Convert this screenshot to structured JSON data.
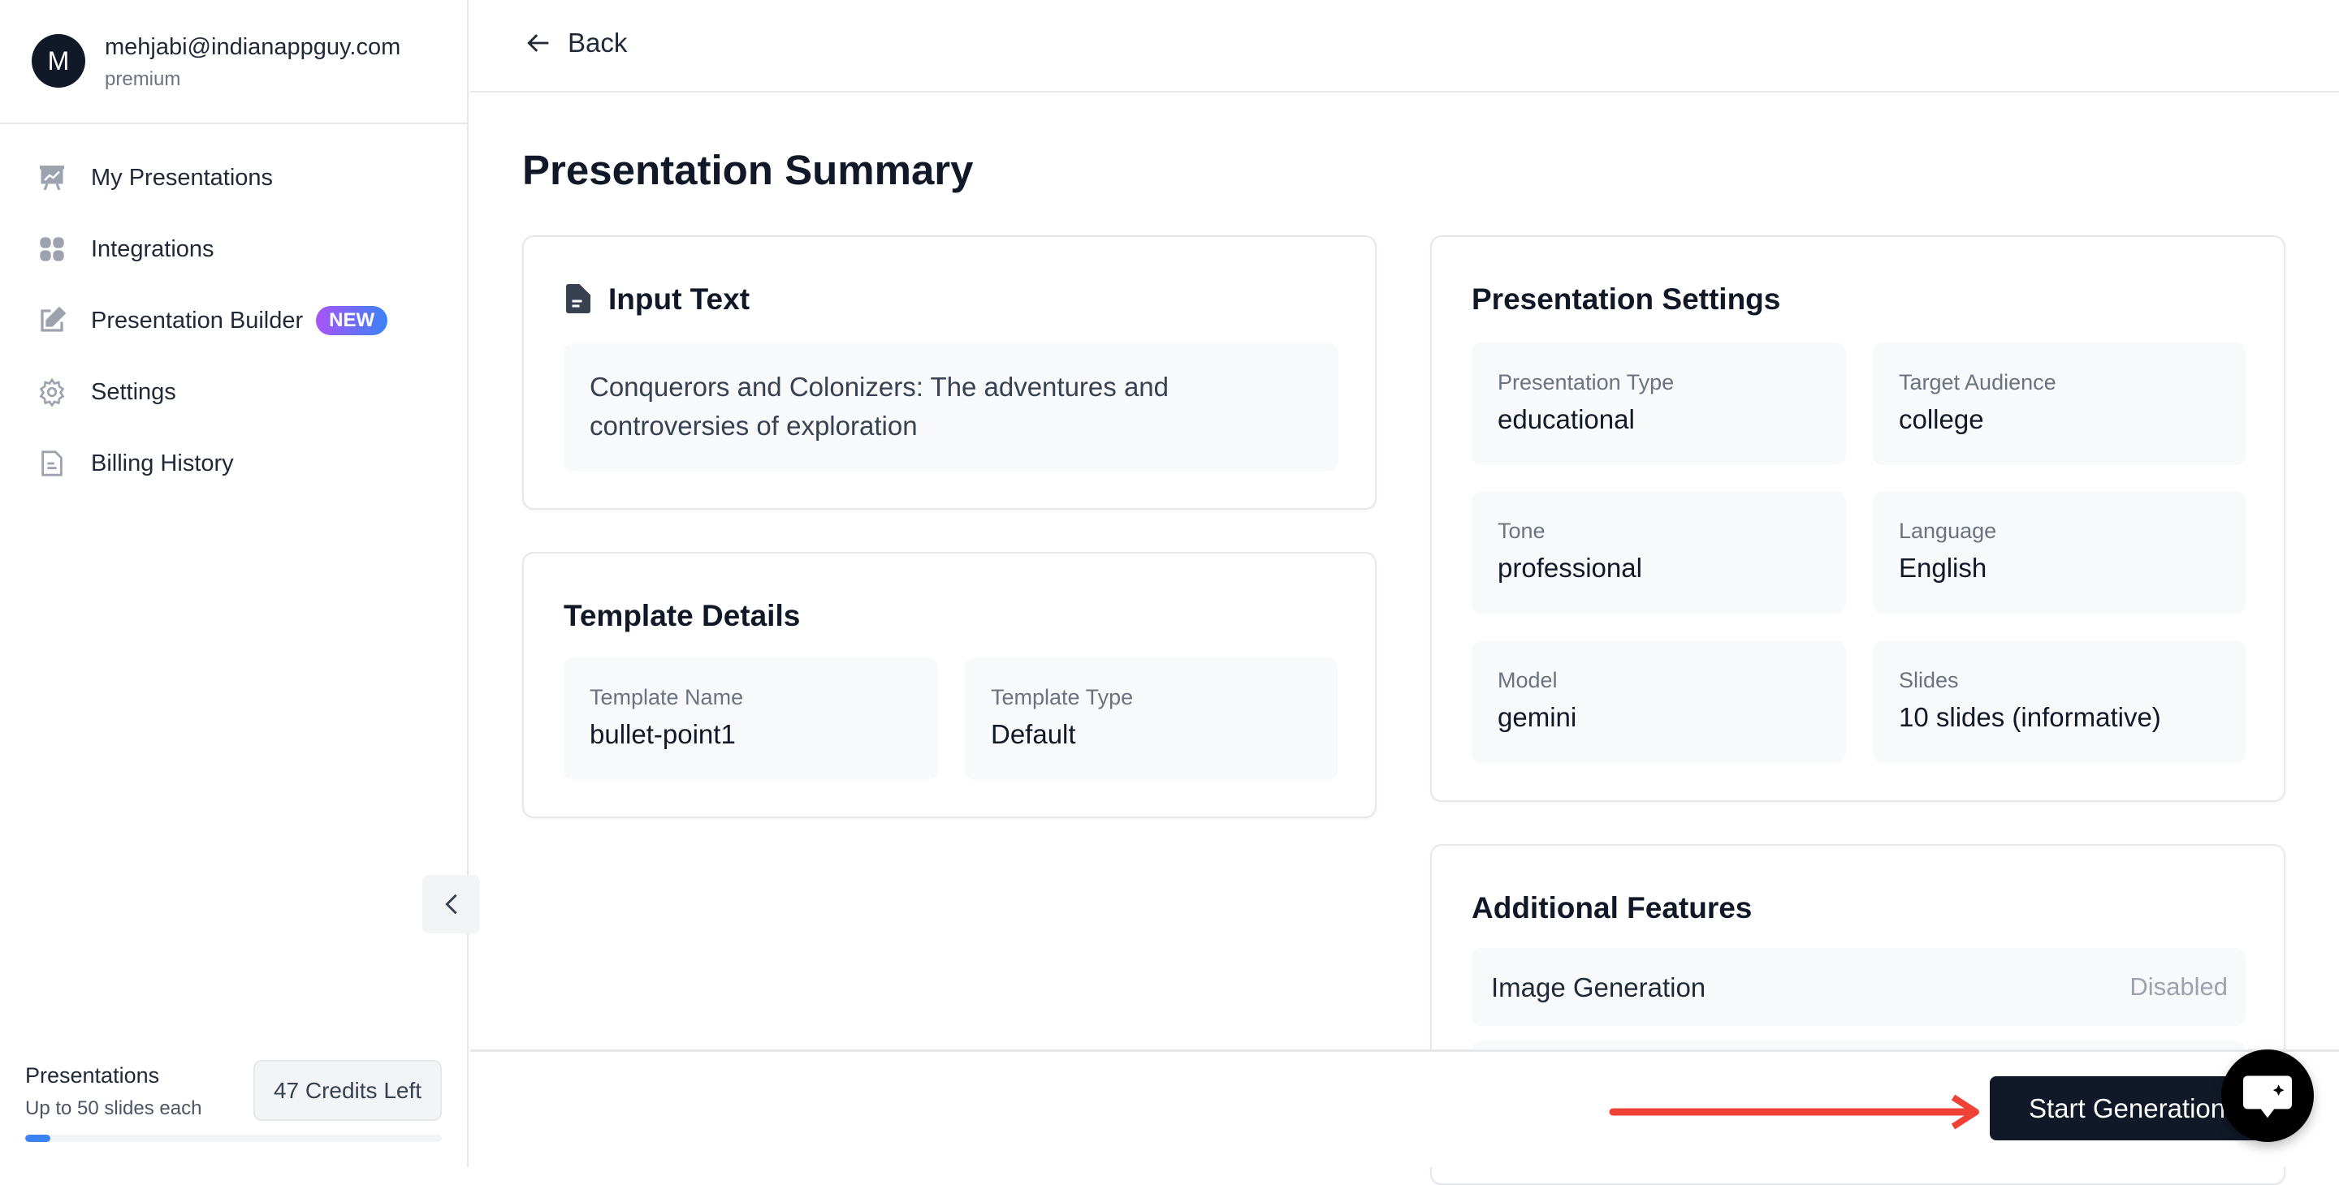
{
  "user": {
    "initial": "M",
    "email": "mehjabi@indianappguy.com",
    "plan": "premium"
  },
  "sidebar": {
    "items": [
      {
        "label": "My Presentations",
        "icon": "presentation-icon"
      },
      {
        "label": "Integrations",
        "icon": "grid-icon"
      },
      {
        "label": "Presentation Builder",
        "icon": "edit-icon",
        "badge": "NEW"
      },
      {
        "label": "Settings",
        "icon": "gear-icon"
      },
      {
        "label": "Billing History",
        "icon": "document-icon"
      }
    ],
    "usage": {
      "label": "Presentations",
      "sublabel": "Up to 50 slides each",
      "credits": "47 Credits Left",
      "progress_fraction": 0.06
    }
  },
  "header": {
    "back_label": "Back"
  },
  "main": {
    "title": "Presentation Summary",
    "input_text": {
      "title": "Input Text",
      "value": "Conquerors and Colonizers: The adventures and controversies of exploration"
    },
    "template": {
      "title": "Template Details",
      "fields": [
        {
          "label": "Template Name",
          "value": "bullet-point1"
        },
        {
          "label": "Template Type",
          "value": "Default"
        }
      ]
    },
    "settings": {
      "title": "Presentation Settings",
      "fields": [
        {
          "label": "Presentation Type",
          "value": "educational"
        },
        {
          "label": "Target Audience",
          "value": "college"
        },
        {
          "label": "Tone",
          "value": "professional"
        },
        {
          "label": "Language",
          "value": "English"
        },
        {
          "label": "Model",
          "value": "gemini"
        },
        {
          "label": "Slides",
          "value": "10 slides (informative)"
        }
      ]
    },
    "features": {
      "title": "Additional Features",
      "items": [
        {
          "label": "Image Generation",
          "value": "Disabled"
        }
      ]
    }
  },
  "footer": {
    "start_label": "Start Generation"
  },
  "colors": {
    "accent": "#111827",
    "annotation_arrow": "#ef4135",
    "badge_from": "#a855f7",
    "badge_to": "#3b82f6"
  }
}
